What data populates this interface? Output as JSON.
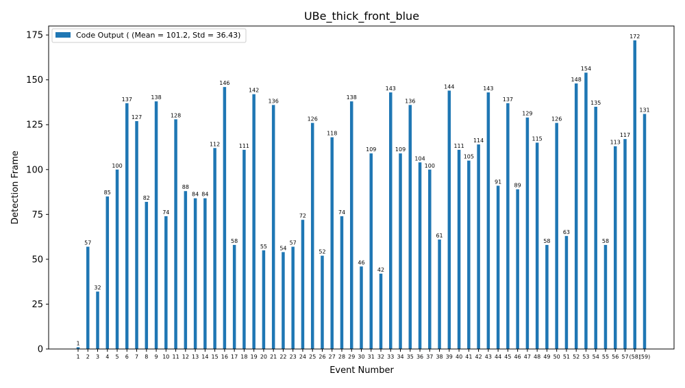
{
  "chart_data": {
    "type": "bar",
    "title": "UBe_thick_front_blue",
    "xlabel": "Event Number",
    "ylabel": "Detection Frame",
    "ylim": [
      0,
      180
    ],
    "yticks": [
      0,
      25,
      50,
      75,
      100,
      125,
      150,
      175
    ],
    "grid": false,
    "legend_position": "top-left",
    "bar_color": "#1f77b4",
    "categories": [
      "1",
      "2",
      "3",
      "4",
      "5",
      "6",
      "7",
      "8",
      "9",
      "10",
      "11",
      "12",
      "13",
      "14",
      "15",
      "16",
      "17",
      "18",
      "19",
      "20",
      "21",
      "22",
      "23",
      "24",
      "25",
      "26",
      "27",
      "28",
      "29",
      "30",
      "31",
      "32",
      "33",
      "34",
      "35",
      "36",
      "37",
      "38",
      "39",
      "40",
      "41",
      "42",
      "43",
      "44",
      "45",
      "46",
      "47",
      "48",
      "49",
      "50",
      "51",
      "52",
      "53",
      "54",
      "55",
      "56",
      "57",
      "(58)",
      "(59)"
    ],
    "series": [
      {
        "name": "Code Output ( (Mean = 101.2, Std = 36.43)",
        "values": [
          1,
          57,
          32,
          85,
          100,
          137,
          127,
          82,
          138,
          74,
          128,
          88,
          84,
          84,
          112,
          146,
          58,
          111,
          142,
          55,
          136,
          54,
          57,
          72,
          126,
          52,
          118,
          74,
          138,
          46,
          109,
          42,
          143,
          109,
          136,
          104,
          100,
          61,
          144,
          111,
          105,
          114,
          143,
          91,
          137,
          89,
          129,
          115,
          58,
          126,
          63,
          148,
          154,
          135,
          58,
          113,
          117,
          172,
          131
        ]
      }
    ]
  }
}
